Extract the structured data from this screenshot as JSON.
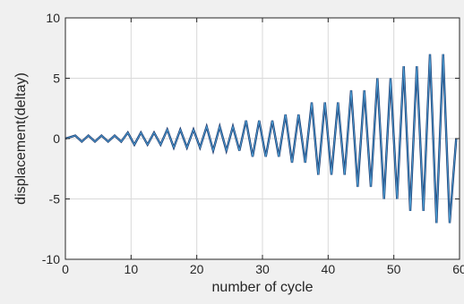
{
  "chart_data": {
    "type": "line",
    "xlabel": "number of cycle",
    "ylabel": "displacement(deltay)",
    "xlim": [
      0,
      60
    ],
    "ylim": [
      -10,
      10
    ],
    "xticks": [
      0,
      10,
      20,
      30,
      40,
      50,
      60
    ],
    "yticks": [
      -10,
      -5,
      0,
      5,
      10
    ],
    "grid": true,
    "colors": {
      "background": "#f0f0f0",
      "plot_area": "#ffffff",
      "grid": "#d9d9d9",
      "axis": "#262626",
      "series_dark": "#1f3a6e",
      "series_light": "#4ea6dc"
    },
    "series": [
      {
        "peaks": [
          {
            "x": 1.5,
            "y": 0.25
          },
          {
            "x": 3.5,
            "y": 0.25
          },
          {
            "x": 5.5,
            "y": 0.25
          },
          {
            "x": 7.5,
            "y": 0.25
          },
          {
            "x": 9.5,
            "y": 0.5
          },
          {
            "x": 11.5,
            "y": 0.5
          },
          {
            "x": 13.5,
            "y": 0.5
          },
          {
            "x": 15.5,
            "y": 0.75
          },
          {
            "x": 17.5,
            "y": 0.75
          },
          {
            "x": 19.5,
            "y": 0.75
          },
          {
            "x": 21.5,
            "y": 1.0
          },
          {
            "x": 23.5,
            "y": 1.0
          },
          {
            "x": 25.5,
            "y": 1.0
          },
          {
            "x": 27.5,
            "y": 1.5
          },
          {
            "x": 29.5,
            "y": 1.5
          },
          {
            "x": 31.5,
            "y": 1.5
          },
          {
            "x": 33.5,
            "y": 2.0
          },
          {
            "x": 35.5,
            "y": 2.0
          },
          {
            "x": 37.5,
            "y": 3.0
          },
          {
            "x": 39.5,
            "y": 3.0
          },
          {
            "x": 41.5,
            "y": 3.0
          },
          {
            "x": 43.5,
            "y": 4.0
          },
          {
            "x": 45.5,
            "y": 4.0
          },
          {
            "x": 47.5,
            "y": 5.0
          },
          {
            "x": 49.5,
            "y": 5.0
          },
          {
            "x": 51.5,
            "y": 6.0
          },
          {
            "x": 53.5,
            "y": 6.0
          },
          {
            "x": 55.5,
            "y": 7.0
          },
          {
            "x": 57.5,
            "y": 7.0
          },
          {
            "x": 59.5,
            "y": 0.0
          }
        ],
        "troughs": [
          {
            "x": 2.5,
            "y": -0.25
          },
          {
            "x": 4.5,
            "y": -0.25
          },
          {
            "x": 6.5,
            "y": -0.25
          },
          {
            "x": 8.5,
            "y": -0.25
          },
          {
            "x": 10.5,
            "y": -0.5
          },
          {
            "x": 12.5,
            "y": -0.5
          },
          {
            "x": 14.5,
            "y": -0.5
          },
          {
            "x": 16.5,
            "y": -0.75
          },
          {
            "x": 18.5,
            "y": -0.75
          },
          {
            "x": 20.5,
            "y": -0.75
          },
          {
            "x": 22.5,
            "y": -1.0
          },
          {
            "x": 24.5,
            "y": -1.0
          },
          {
            "x": 26.5,
            "y": -1.0
          },
          {
            "x": 28.5,
            "y": -1.5
          },
          {
            "x": 30.5,
            "y": -1.5
          },
          {
            "x": 32.5,
            "y": -1.5
          },
          {
            "x": 34.5,
            "y": -2.0
          },
          {
            "x": 36.5,
            "y": -2.0
          },
          {
            "x": 38.5,
            "y": -3.0
          },
          {
            "x": 40.5,
            "y": -3.0
          },
          {
            "x": 42.5,
            "y": -3.0
          },
          {
            "x": 44.5,
            "y": -4.0
          },
          {
            "x": 46.5,
            "y": -4.0
          },
          {
            "x": 48.5,
            "y": -5.0
          },
          {
            "x": 50.5,
            "y": -5.0
          },
          {
            "x": 52.5,
            "y": -6.0
          },
          {
            "x": 54.5,
            "y": -6.0
          },
          {
            "x": 56.5,
            "y": -7.0
          },
          {
            "x": 58.5,
            "y": -7.0
          }
        ]
      }
    ]
  }
}
